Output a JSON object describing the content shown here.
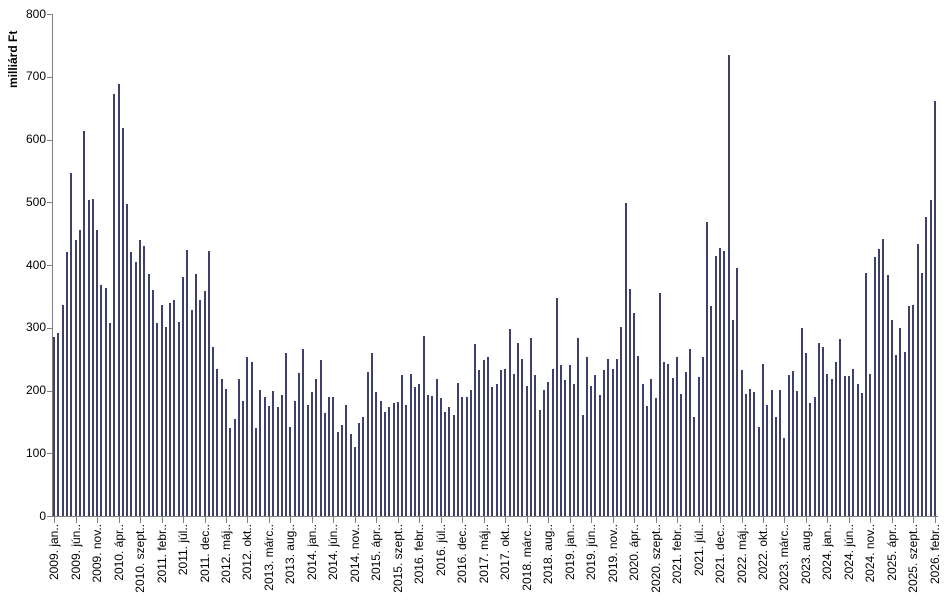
{
  "chart_data": {
    "type": "bar",
    "title": "",
    "xlabel": "",
    "ylabel": "milliárd Ft",
    "ylim": [
      0,
      800
    ],
    "y_ticks": [
      0,
      100,
      200,
      300,
      400,
      500,
      600,
      700,
      800
    ],
    "grid": false,
    "legend": false,
    "bar_color": "#2e2e5a",
    "axis_color": "#808080",
    "background_color": "#ffffff",
    "x_frequency": "monthly",
    "x_start": "2009. jan",
    "x_end": "2026. febr",
    "x_tick_every": 5,
    "x_tick_labels": [
      "2009. jan..",
      "2009. jún..",
      "2009. nov..",
      "2010. ápr..",
      "2010. szept..",
      "2011. febr..",
      "2011. júl..",
      "2011. dec..",
      "2012. máj..",
      "2012. okt..",
      "2013. márc..",
      "2013. aug..",
      "2014. jan..",
      "2014. jún..",
      "2014. nov..",
      "2015. ápr..",
      "2015. szept..",
      "2016. febr..",
      "2016. júl..",
      "2016. dec..",
      "2017. máj..",
      "2017. okt..",
      "2018. márc..",
      "2018. aug..",
      "2019. jan..",
      "2019. jún..",
      "2019. nov..",
      "2020. ápr..",
      "2020. szept..",
      "2021. febr..",
      "2021. júl..",
      "2021. dec..",
      "2022. máj..",
      "2022. okt..",
      "2023. márc..",
      "2023. aug..",
      "2024. jan..",
      "2024. jún..",
      "2024. nov..",
      "2025. ápr..",
      "2025. szept..",
      "2026. febr.."
    ],
    "values": [
      285,
      292,
      337,
      420,
      546,
      440,
      456,
      613,
      503,
      505,
      455,
      368,
      364,
      307,
      672,
      688,
      618,
      498,
      420,
      405,
      440,
      430,
      385,
      360,
      307,
      336,
      302,
      340,
      345,
      309,
      381,
      424,
      329,
      385,
      345,
      359,
      423,
      270,
      234,
      219,
      203,
      141,
      154,
      219,
      184,
      253,
      246,
      141,
      201,
      190,
      175,
      200,
      173,
      193,
      260,
      142,
      184,
      228,
      266,
      177,
      197,
      218,
      248,
      164,
      189,
      189,
      134,
      145,
      177,
      131,
      110,
      148,
      157,
      230,
      259,
      197,
      184,
      166,
      174,
      180,
      181,
      225,
      177,
      227,
      205,
      210,
      287,
      193,
      191,
      219,
      188,
      166,
      173,
      161,
      212,
      189,
      189,
      201,
      274,
      232,
      248,
      254,
      205,
      211,
      233,
      234,
      298,
      227,
      276,
      250,
      207,
      283,
      225,
      169,
      201,
      214,
      235,
      348,
      241,
      217,
      241,
      211,
      283,
      161,
      254,
      207,
      225,
      193,
      233,
      251,
      234,
      251,
      302,
      499,
      361,
      323,
      255,
      211,
      175,
      219,
      188,
      356,
      246,
      242,
      220,
      254,
      195,
      230,
      266,
      157,
      222,
      254,
      469,
      334,
      415,
      427,
      422,
      735,
      312,
      396,
      233,
      194,
      203,
      198,
      142,
      243,
      177,
      201,
      158,
      201,
      124,
      225,
      231,
      200,
      300,
      260,
      180,
      189,
      276,
      270,
      227,
      218,
      246,
      282,
      223,
      223,
      234,
      211,
      196,
      387,
      227,
      412,
      425,
      442,
      384,
      312,
      257,
      299,
      262,
      334,
      336,
      434,
      387,
      477,
      504,
      662
    ]
  }
}
